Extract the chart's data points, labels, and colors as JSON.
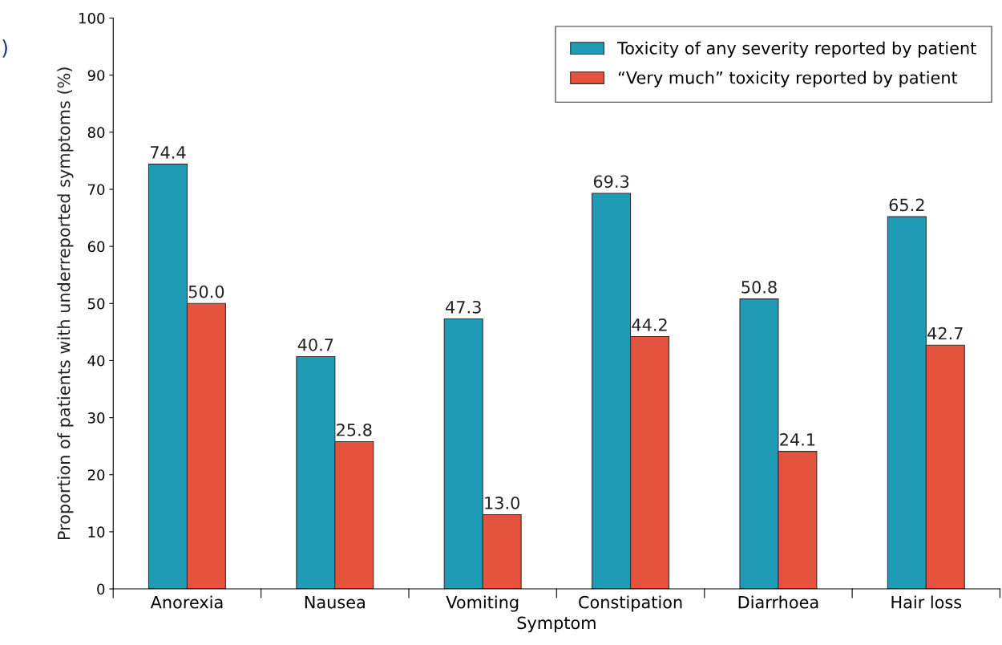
{
  "chart_data": {
    "type": "bar",
    "xlabel": "Symptom",
    "ylabel": "Proportion of patients with underreported symptoms (%)",
    "annotations": [
      ")"
    ],
    "categories": [
      "Anorexia",
      "Nausea",
      "Vomiting",
      "Constipation",
      "Diarrhoea",
      "Hair loss"
    ],
    "series": [
      {
        "name": "Toxicity of any severity reported by patient",
        "color": "#1f9bb6",
        "values": [
          74.4,
          40.7,
          47.3,
          69.3,
          50.8,
          65.2
        ],
        "value_labels": [
          "74.4",
          "40.7",
          "47.3",
          "69.3",
          "50.8",
          "65.2"
        ]
      },
      {
        "name": "“Very much” toxicity reported by patient",
        "color": "#e5533f",
        "values": [
          50.0,
          25.8,
          13.0,
          44.2,
          24.1,
          42.7
        ],
        "value_labels": [
          "50.0",
          "25.8",
          "13.0",
          "44.2",
          "24.1",
          "42.7"
        ]
      }
    ],
    "ylim": [
      0,
      100
    ],
    "yticks": [
      0,
      10,
      20,
      30,
      40,
      50,
      60,
      70,
      80,
      90,
      100
    ],
    "grid": false,
    "legend": "top right"
  }
}
